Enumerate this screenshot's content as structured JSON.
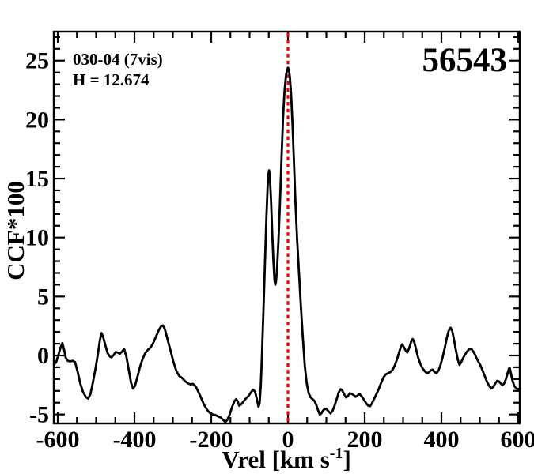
{
  "chart_data": {
    "type": "line",
    "title": "",
    "annotations": {
      "top_left_line1": "030-04 (7vis)",
      "top_left_line2": "H = 12.674",
      "top_right": "56543"
    },
    "xlabel": {
      "pre": "Vrel [km s",
      "sup": "-1",
      "post": "]"
    },
    "ylabel": "CCF*100",
    "xlim": [
      -610.3,
      604.1
    ],
    "ylim": [
      -5.76,
      27.46
    ],
    "x_major_ticks": [
      -600,
      -400,
      -200,
      0,
      200,
      400,
      600
    ],
    "x_tick_labels": [
      "-600",
      "-400",
      "-200",
      "0",
      "200",
      "400",
      "600"
    ],
    "x_minor_step": 50,
    "y_major_ticks": [
      -5,
      0,
      5,
      10,
      15,
      20,
      25
    ],
    "y_tick_labels": [
      "-5",
      "0",
      "5",
      "10",
      "15",
      "20",
      "25"
    ],
    "y_minor_step": 1,
    "grid": false,
    "legend": false,
    "frame_color": "#000000",
    "ref_line": {
      "x": 0,
      "color": "#ee0000",
      "style": "dotted"
    },
    "series": [
      {
        "name": "CCF",
        "color": "#000000",
        "points": [
          [
            -610,
            -0.8
          ],
          [
            -604,
            -0.55
          ],
          [
            -598,
            0.1
          ],
          [
            -592,
            0.75
          ],
          [
            -588,
            1.05
          ],
          [
            -584,
            0.55
          ],
          [
            -579,
            -0.2
          ],
          [
            -574,
            -0.45
          ],
          [
            -568,
            -0.5
          ],
          [
            -561,
            -0.45
          ],
          [
            -555,
            -0.55
          ],
          [
            -548,
            -1.4
          ],
          [
            -541,
            -2.4
          ],
          [
            -534,
            -3.1
          ],
          [
            -527,
            -3.5
          ],
          [
            -521,
            -3.65
          ],
          [
            -515,
            -3.3
          ],
          [
            -509,
            -2.4
          ],
          [
            -502,
            -1.2
          ],
          [
            -495,
            0.2
          ],
          [
            -490,
            1.3
          ],
          [
            -486,
            1.9
          ],
          [
            -482,
            1.6
          ],
          [
            -476,
            0.9
          ],
          [
            -470,
            0.2
          ],
          [
            -464,
            -0.1
          ],
          [
            -460,
            -0.15
          ],
          [
            -454,
            0.05
          ],
          [
            -449,
            0.3
          ],
          [
            -444,
            0.25
          ],
          [
            -438,
            0.15
          ],
          [
            -432,
            0.35
          ],
          [
            -427,
            0.55
          ],
          [
            -421,
            -0.1
          ],
          [
            -415,
            -1.2
          ],
          [
            -409,
            -2.3
          ],
          [
            -404,
            -2.8
          ],
          [
            -399,
            -2.6
          ],
          [
            -393,
            -1.9
          ],
          [
            -386,
            -1.0
          ],
          [
            -379,
            -0.3
          ],
          [
            -372,
            0.2
          ],
          [
            -366,
            0.45
          ],
          [
            -359,
            0.65
          ],
          [
            -352,
            1.0
          ],
          [
            -344,
            1.6
          ],
          [
            -336,
            2.2
          ],
          [
            -330,
            2.5
          ],
          [
            -326,
            2.55
          ],
          [
            -321,
            2.25
          ],
          [
            -314,
            1.4
          ],
          [
            -306,
            0.4
          ],
          [
            -298,
            -0.6
          ],
          [
            -291,
            -1.3
          ],
          [
            -283,
            -1.75
          ],
          [
            -276,
            -1.9
          ],
          [
            -269,
            -2.15
          ],
          [
            -261,
            -2.35
          ],
          [
            -254,
            -2.45
          ],
          [
            -248,
            -2.4
          ],
          [
            -241,
            -2.6
          ],
          [
            -234,
            -3.05
          ],
          [
            -227,
            -3.55
          ],
          [
            -219,
            -4.15
          ],
          [
            -211,
            -4.6
          ],
          [
            -204,
            -4.85
          ],
          [
            -196,
            -5.0
          ],
          [
            -189,
            -5.05
          ],
          [
            -183,
            -5.15
          ],
          [
            -176,
            -5.25
          ],
          [
            -169,
            -5.45
          ],
          [
            -163,
            -5.65
          ],
          [
            -158,
            -5.45
          ],
          [
            -152,
            -5.0
          ],
          [
            -146,
            -4.4
          ],
          [
            -140,
            -3.9
          ],
          [
            -135,
            -3.7
          ],
          [
            -131,
            -3.9
          ],
          [
            -127,
            -4.25
          ],
          [
            -122,
            -4.15
          ],
          [
            -116,
            -3.9
          ],
          [
            -110,
            -3.65
          ],
          [
            -103,
            -3.45
          ],
          [
            -97,
            -3.15
          ],
          [
            -91,
            -2.9
          ],
          [
            -86,
            -3.05
          ],
          [
            -81,
            -3.7
          ],
          [
            -77,
            -4.35
          ],
          [
            -74,
            -4.1
          ],
          [
            -71,
            -2.6
          ],
          [
            -68,
            -0.2
          ],
          [
            -64,
            3.8
          ],
          [
            -60,
            7.8
          ],
          [
            -56,
            11.8
          ],
          [
            -53,
            14.3
          ],
          [
            -51,
            15.4
          ],
          [
            -49,
            15.7
          ],
          [
            -47,
            15.1
          ],
          [
            -44,
            13.0
          ],
          [
            -41,
            10.4
          ],
          [
            -38,
            8.0
          ],
          [
            -35,
            6.4
          ],
          [
            -33,
            6.0
          ],
          [
            -31,
            6.3
          ],
          [
            -28,
            7.6
          ],
          [
            -25,
            9.6
          ],
          [
            -21,
            12.8
          ],
          [
            -17,
            16.6
          ],
          [
            -13,
            20.0
          ],
          [
            -9,
            22.4
          ],
          [
            -5,
            23.8
          ],
          [
            -2,
            24.2
          ],
          [
            0,
            24.4
          ],
          [
            2,
            24.3
          ],
          [
            5,
            23.6
          ],
          [
            8,
            22.2
          ],
          [
            12,
            19.5
          ],
          [
            16,
            16.0
          ],
          [
            20,
            12.6
          ],
          [
            24,
            9.8
          ],
          [
            29,
            6.8
          ],
          [
            34,
            4.0
          ],
          [
            39,
            1.4
          ],
          [
            44,
            -0.9
          ],
          [
            49,
            -2.4
          ],
          [
            54,
            -3.2
          ],
          [
            59,
            -3.55
          ],
          [
            64,
            -3.7
          ],
          [
            69,
            -3.85
          ],
          [
            74,
            -4.2
          ],
          [
            78,
            -4.6
          ],
          [
            83,
            -5.0
          ],
          [
            87,
            -4.9
          ],
          [
            92,
            -4.65
          ],
          [
            97,
            -4.5
          ],
          [
            102,
            -4.6
          ],
          [
            106,
            -4.75
          ],
          [
            111,
            -4.9
          ],
          [
            116,
            -4.7
          ],
          [
            121,
            -4.3
          ],
          [
            127,
            -3.7
          ],
          [
            132,
            -3.15
          ],
          [
            137,
            -2.85
          ],
          [
            141,
            -2.95
          ],
          [
            146,
            -3.25
          ],
          [
            151,
            -3.55
          ],
          [
            156,
            -3.45
          ],
          [
            161,
            -3.2
          ],
          [
            166,
            -3.25
          ],
          [
            171,
            -3.35
          ],
          [
            176,
            -3.5
          ],
          [
            181,
            -3.4
          ],
          [
            186,
            -3.25
          ],
          [
            192,
            -3.45
          ],
          [
            198,
            -3.75
          ],
          [
            204,
            -4.05
          ],
          [
            209,
            -4.25
          ],
          [
            214,
            -4.3
          ],
          [
            219,
            -4.05
          ],
          [
            225,
            -3.65
          ],
          [
            231,
            -3.25
          ],
          [
            237,
            -2.8
          ],
          [
            243,
            -2.3
          ],
          [
            249,
            -1.85
          ],
          [
            255,
            -1.6
          ],
          [
            261,
            -1.5
          ],
          [
            267,
            -1.4
          ],
          [
            273,
            -1.2
          ],
          [
            279,
            -0.8
          ],
          [
            285,
            -0.25
          ],
          [
            291,
            0.4
          ],
          [
            295,
            0.8
          ],
          [
            298,
            0.95
          ],
          [
            302,
            0.7
          ],
          [
            307,
            0.4
          ],
          [
            311,
            0.25
          ],
          [
            316,
            0.65
          ],
          [
            321,
            1.15
          ],
          [
            325,
            1.4
          ],
          [
            329,
            1.15
          ],
          [
            334,
            0.5
          ],
          [
            339,
            -0.15
          ],
          [
            345,
            -0.7
          ],
          [
            351,
            -1.1
          ],
          [
            357,
            -1.35
          ],
          [
            363,
            -1.5
          ],
          [
            368,
            -1.4
          ],
          [
            373,
            -1.25
          ],
          [
            377,
            -1.2
          ],
          [
            382,
            -1.4
          ],
          [
            387,
            -1.5
          ],
          [
            392,
            -1.3
          ],
          [
            397,
            -0.85
          ],
          [
            403,
            -0.15
          ],
          [
            409,
            0.7
          ],
          [
            414,
            1.5
          ],
          [
            419,
            2.1
          ],
          [
            424,
            2.35
          ],
          [
            428,
            2.1
          ],
          [
            433,
            1.3
          ],
          [
            438,
            0.4
          ],
          [
            443,
            -0.4
          ],
          [
            447,
            -0.8
          ],
          [
            451,
            -0.6
          ],
          [
            456,
            -0.25
          ],
          [
            461,
            0.05
          ],
          [
            467,
            0.35
          ],
          [
            473,
            0.55
          ],
          [
            478,
            0.55
          ],
          [
            484,
            0.3
          ],
          [
            489,
            -0.05
          ],
          [
            495,
            -0.45
          ],
          [
            501,
            -0.8
          ],
          [
            507,
            -1.25
          ],
          [
            513,
            -1.75
          ],
          [
            519,
            -2.25
          ],
          [
            525,
            -2.6
          ],
          [
            530,
            -2.8
          ],
          [
            535,
            -2.65
          ],
          [
            540,
            -2.4
          ],
          [
            545,
            -2.15
          ],
          [
            550,
            -2.2
          ],
          [
            555,
            -2.4
          ],
          [
            559,
            -2.5
          ],
          [
            563,
            -2.4
          ],
          [
            568,
            -2.0
          ],
          [
            572,
            -1.55
          ],
          [
            576,
            -1.1
          ],
          [
            578,
            -1.05
          ],
          [
            581,
            -1.5
          ],
          [
            585,
            -2.1
          ],
          [
            590,
            -2.6
          ],
          [
            595,
            -2.8
          ],
          [
            600,
            -2.85
          ],
          [
            604,
            -2.8
          ]
        ]
      }
    ]
  }
}
